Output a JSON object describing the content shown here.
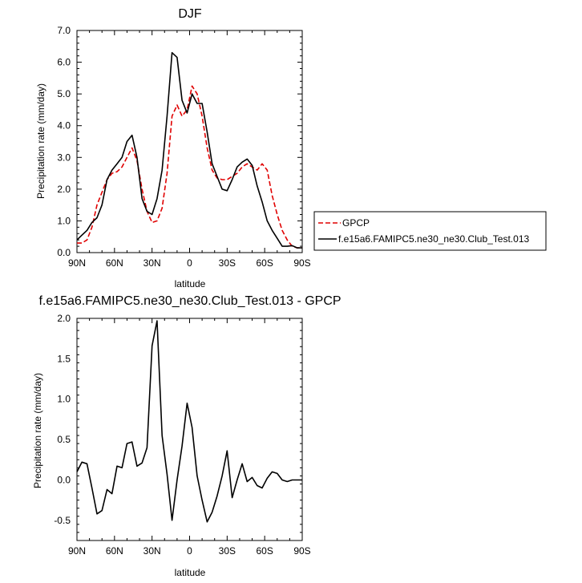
{
  "chart_data": [
    {
      "type": "line",
      "title": "DJF",
      "xlabel": "latitude",
      "ylabel": "Precipitation rate (mm/day)",
      "xlim": [
        -90,
        90
      ],
      "ylim": [
        0,
        7
      ],
      "x_ticks": [
        {
          "v": 90,
          "label": "90N"
        },
        {
          "v": 60,
          "label": "60N"
        },
        {
          "v": 30,
          "label": "30N"
        },
        {
          "v": 0,
          "label": "0"
        },
        {
          "v": -30,
          "label": "30S"
        },
        {
          "v": -60,
          "label": "60S"
        },
        {
          "v": -90,
          "label": "90S"
        }
      ],
      "y_ticks": [
        {
          "v": 0,
          "label": "0.0"
        },
        {
          "v": 1,
          "label": "1.0"
        },
        {
          "v": 2,
          "label": "2.0"
        },
        {
          "v": 3,
          "label": "3.0"
        },
        {
          "v": 4,
          "label": "4.0"
        },
        {
          "v": 5,
          "label": "5.0"
        },
        {
          "v": 6,
          "label": "6.0"
        },
        {
          "v": 7,
          "label": "7.0"
        }
      ],
      "legend": "outside-right",
      "series": [
        {
          "name": "GPCP",
          "color": "#e00000",
          "dash": true,
          "x": [
            90,
            86,
            82,
            78,
            74,
            70,
            66,
            62,
            58,
            54,
            50,
            46,
            42,
            38,
            34,
            30,
            26,
            22,
            18,
            14,
            10,
            6,
            2,
            -2,
            -6,
            -10,
            -14,
            -18,
            -22,
            -26,
            -30,
            -34,
            -38,
            -42,
            -46,
            -50,
            -54,
            -58,
            -62,
            -66,
            -70,
            -74,
            -78,
            -82,
            -86,
            -90
          ],
          "y": [
            0.3,
            0.3,
            0.4,
            0.8,
            1.5,
            1.9,
            2.3,
            2.5,
            2.55,
            2.7,
            3.0,
            3.3,
            2.9,
            2.0,
            1.3,
            0.95,
            1.0,
            1.4,
            2.5,
            4.3,
            4.65,
            4.3,
            4.5,
            5.25,
            5.0,
            4.3,
            3.3,
            2.6,
            2.35,
            2.3,
            2.3,
            2.4,
            2.5,
            2.7,
            2.8,
            2.7,
            2.6,
            2.8,
            2.6,
            1.8,
            1.2,
            0.7,
            0.4,
            0.2,
            0.15,
            0.15
          ]
        },
        {
          "name": "f.e15a6.FAMIPC5.ne30_ne30.Club_Test.013",
          "color": "#000000",
          "dash": false,
          "x": [
            90,
            86,
            82,
            78,
            74,
            70,
            66,
            62,
            58,
            54,
            50,
            46,
            42,
            38,
            34,
            30,
            26,
            22,
            18,
            14,
            10,
            6,
            2,
            -2,
            -6,
            -10,
            -14,
            -18,
            -22,
            -26,
            -30,
            -34,
            -38,
            -42,
            -46,
            -50,
            -54,
            -58,
            -62,
            -66,
            -70,
            -74,
            -78,
            -82,
            -86,
            -90
          ],
          "y": [
            0.4,
            0.55,
            0.7,
            0.95,
            1.1,
            1.5,
            2.3,
            2.6,
            2.8,
            3.0,
            3.5,
            3.7,
            3.0,
            1.7,
            1.3,
            1.2,
            1.7,
            2.6,
            4.3,
            6.3,
            6.15,
            4.8,
            4.4,
            5.0,
            4.7,
            4.7,
            3.8,
            2.8,
            2.4,
            2.0,
            1.95,
            2.3,
            2.7,
            2.85,
            2.95,
            2.75,
            2.1,
            1.6,
            1.0,
            0.7,
            0.45,
            0.2,
            0.2,
            0.22,
            0.15,
            0.15
          ]
        }
      ]
    },
    {
      "type": "line",
      "title": "f.e15a6.FAMIPC5.ne30_ne30.Club_Test.013 - GPCP",
      "xlabel": "latitude",
      "ylabel": "Precipitation rate (mm/day)",
      "xlim": [
        -90,
        90
      ],
      "ylim": [
        -0.75,
        2.0
      ],
      "x_ticks": [
        {
          "v": 90,
          "label": "90N"
        },
        {
          "v": 60,
          "label": "60N"
        },
        {
          "v": 30,
          "label": "30N"
        },
        {
          "v": 0,
          "label": "0"
        },
        {
          "v": -30,
          "label": "30S"
        },
        {
          "v": -60,
          "label": "60S"
        },
        {
          "v": -90,
          "label": "90S"
        }
      ],
      "y_ticks": [
        {
          "v": -0.5,
          "label": "-0.5"
        },
        {
          "v": 0,
          "label": "0.0"
        },
        {
          "v": 0.5,
          "label": "0.5"
        },
        {
          "v": 1.0,
          "label": "1.0"
        },
        {
          "v": 1.5,
          "label": "1.5"
        },
        {
          "v": 2.0,
          "label": "2.0"
        }
      ],
      "series": [
        {
          "name": "",
          "color": "#000000",
          "dash": false,
          "x": [
            90,
            86,
            82,
            78,
            74,
            70,
            66,
            62,
            58,
            54,
            50,
            46,
            42,
            38,
            34,
            30,
            26,
            22,
            18,
            14,
            10,
            6,
            2,
            -2,
            -6,
            -10,
            -14,
            -18,
            -22,
            -26,
            -30,
            -34,
            -38,
            -42,
            -46,
            -50,
            -54,
            -58,
            -62,
            -66,
            -70,
            -74,
            -78,
            -82,
            -86,
            -90
          ],
          "y": [
            0.1,
            0.22,
            0.2,
            -0.1,
            -0.42,
            -0.38,
            -0.12,
            -0.17,
            0.17,
            0.15,
            0.45,
            0.47,
            0.17,
            0.21,
            0.4,
            1.66,
            1.97,
            0.55,
            0.07,
            -0.5,
            0.0,
            0.42,
            0.95,
            0.65,
            0.05,
            -0.25,
            -0.52,
            -0.4,
            -0.2,
            0.05,
            0.36,
            -0.22,
            0.0,
            0.2,
            -0.02,
            0.03,
            -0.07,
            -0.1,
            0.02,
            0.1,
            0.08,
            0.0,
            -0.02,
            0.0,
            0.0,
            0.0
          ]
        }
      ]
    }
  ]
}
